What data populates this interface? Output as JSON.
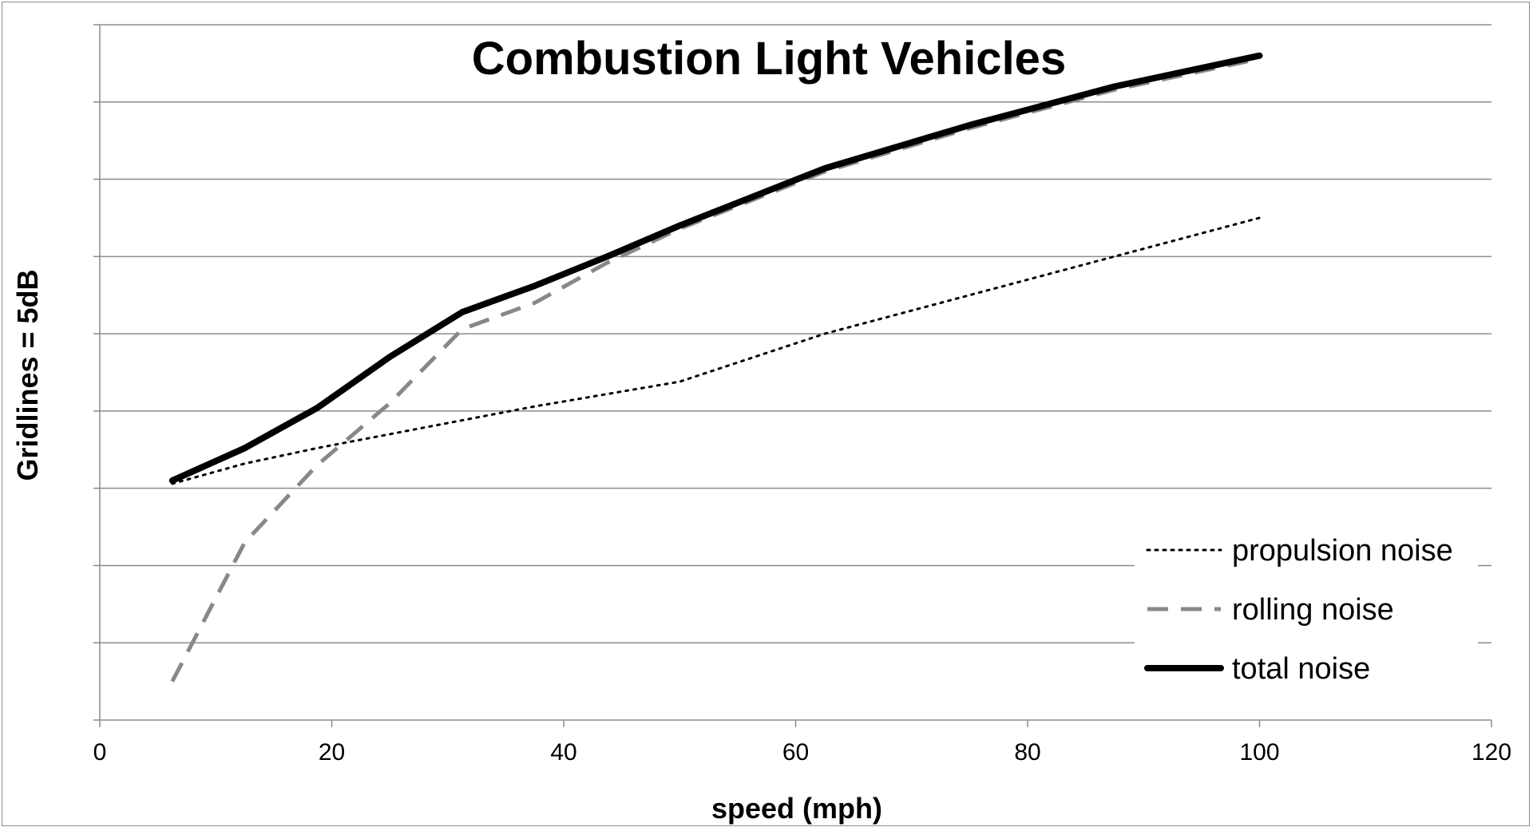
{
  "chart_data": {
    "type": "line",
    "title": "Combustion Light Vehicles",
    "xlabel": "speed (mph)",
    "ylabel": "Gridlines = 5dB",
    "xlim": [
      0,
      120
    ],
    "xticks": [
      0,
      20,
      40,
      60,
      80,
      100,
      120
    ],
    "ylim": [
      0,
      45
    ],
    "y_grid_step": 5,
    "y_tick_labels_shown": false,
    "grid": {
      "horizontal": true,
      "vertical": false
    },
    "legend_position": "bottom-right",
    "series": [
      {
        "name": "propulsion noise",
        "style": "dotted",
        "color": "#000000",
        "x": [
          6.25,
          12.5,
          18.75,
          25,
          31.25,
          37.5,
          43.75,
          50,
          62.5,
          75,
          87.5,
          100
        ],
        "y": [
          15.3,
          16.6,
          17.6,
          18.5,
          19.4,
          20.3,
          21.1,
          21.9,
          25.0,
          27.5,
          30.0,
          32.5
        ]
      },
      {
        "name": "rolling noise",
        "style": "dashed",
        "color": "#888888",
        "x": [
          6.25,
          12.5,
          18.75,
          25,
          31.25,
          37.5,
          43.75,
          50,
          62.5,
          75,
          87.5,
          100
        ],
        "y": [
          2.5,
          11.5,
          16.5,
          20.5,
          25.3,
          27.0,
          29.6,
          31.8,
          35.5,
          38.3,
          40.8,
          42.8
        ]
      },
      {
        "name": "total noise",
        "style": "solid",
        "color": "#000000",
        "x": [
          6.25,
          12.5,
          18.75,
          25,
          31.25,
          37.5,
          43.75,
          50,
          62.5,
          75,
          87.5,
          100
        ],
        "y": [
          15.5,
          17.6,
          20.2,
          23.5,
          26.4,
          28.1,
          30.0,
          32.0,
          35.7,
          38.5,
          41.0,
          43.0
        ]
      }
    ]
  }
}
